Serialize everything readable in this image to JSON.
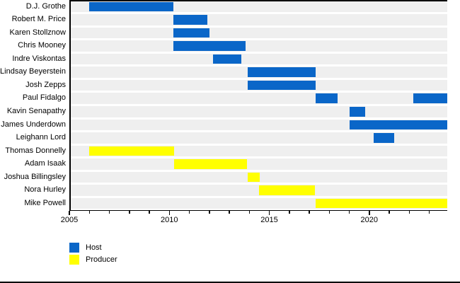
{
  "colors": {
    "host": "#0A66C8",
    "producer": "#FFFF00",
    "row_band": "#EFEFEF",
    "axis": "#000000",
    "background": "#FFFFFF"
  },
  "chart_data": {
    "type": "bar",
    "variant": "gantt-timeline",
    "title": "",
    "xlabel": "",
    "ylabel": "",
    "x_range": [
      2005,
      2023.9
    ],
    "x_minor_tick_interval": 1,
    "x_labeled_ticks": [
      2005,
      2010,
      2015,
      2020
    ],
    "grid": false,
    "legend_position": "bottom-left",
    "legend": [
      {
        "label": "Host",
        "color_key": "host"
      },
      {
        "label": "Producer",
        "color_key": "producer"
      }
    ],
    "rows": [
      {
        "name": "D.J. Grothe",
        "role": "Host",
        "segments": [
          [
            2006.0,
            2010.2
          ]
        ]
      },
      {
        "name": "Robert M. Price",
        "role": "Host",
        "segments": [
          [
            2010.2,
            2011.9
          ]
        ]
      },
      {
        "name": "Karen Stollznow",
        "role": "Host",
        "segments": [
          [
            2010.2,
            2012.0
          ]
        ]
      },
      {
        "name": "Chris Mooney",
        "role": "Host",
        "segments": [
          [
            2010.2,
            2013.8
          ]
        ]
      },
      {
        "name": "Indre Viskontas",
        "role": "Host",
        "segments": [
          [
            2012.2,
            2013.6
          ]
        ]
      },
      {
        "name": "Lindsay Beyerstein",
        "role": "Host",
        "segments": [
          [
            2013.9,
            2017.3
          ]
        ]
      },
      {
        "name": "Josh Zepps",
        "role": "Host",
        "segments": [
          [
            2013.9,
            2017.3
          ]
        ]
      },
      {
        "name": "Paul Fidalgo",
        "role": "Host",
        "segments": [
          [
            2017.3,
            2018.4
          ],
          [
            2022.2,
            2023.9
          ]
        ]
      },
      {
        "name": "Kavin Senapathy",
        "role": "Host",
        "segments": [
          [
            2019.0,
            2019.8
          ]
        ]
      },
      {
        "name": "James Underdown",
        "role": "Host",
        "segments": [
          [
            2019.0,
            2023.9
          ]
        ]
      },
      {
        "name": "Leighann Lord",
        "role": "Host",
        "segments": [
          [
            2020.2,
            2021.25
          ]
        ]
      },
      {
        "name": "Thomas Donnelly",
        "role": "Producer",
        "segments": [
          [
            2006.0,
            2010.25
          ]
        ]
      },
      {
        "name": "Adam Isaak",
        "role": "Producer",
        "segments": [
          [
            2010.25,
            2013.9
          ]
        ]
      },
      {
        "name": "Joshua Billingsley",
        "role": "Producer",
        "segments": [
          [
            2013.9,
            2014.5
          ]
        ]
      },
      {
        "name": "Nora Hurley",
        "role": "Producer",
        "segments": [
          [
            2014.5,
            2017.3
          ]
        ]
      },
      {
        "name": "Mike Powell",
        "role": "Producer",
        "segments": [
          [
            2017.3,
            2023.9
          ]
        ]
      }
    ]
  }
}
